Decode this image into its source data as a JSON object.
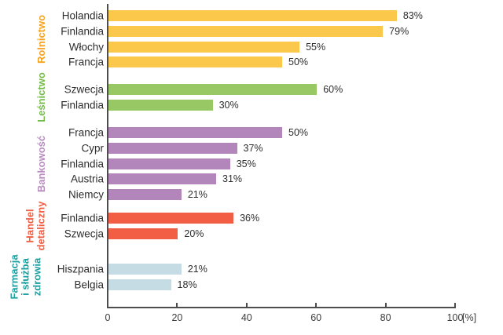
{
  "chart_data": {
    "type": "bar",
    "orientation": "horizontal",
    "title": "",
    "xlabel": "[%]",
    "ylabel": "",
    "xlim": [
      0,
      100
    ],
    "x_ticks": [
      0,
      20,
      40,
      60,
      80,
      100
    ],
    "grid": false,
    "legend": "none",
    "axis_color": "#4d4d4d",
    "groups": [
      {
        "sector": "Rolnictwo",
        "label_color": "#f6a21e",
        "bar_color": "#fbc84b",
        "rows": [
          {
            "country": "Holandia",
            "value": 83,
            "value_label": "83%"
          },
          {
            "country": "Finlandia",
            "value": 79,
            "value_label": "79%"
          },
          {
            "country": "Włochy",
            "value": 55,
            "value_label": "55%"
          },
          {
            "country": "Francja",
            "value": 50,
            "value_label": "50%"
          }
        ]
      },
      {
        "sector": "Leśnictwo",
        "label_color": "#74bb49",
        "bar_color": "#98c863",
        "rows": [
          {
            "country": "Szwecja",
            "value": 60,
            "value_label": "60%"
          },
          {
            "country": "Finlandia",
            "value": 30,
            "value_label": "30%"
          }
        ]
      },
      {
        "sector": "Bankowość",
        "label_color": "#b88cbf",
        "bar_color": "#b286bb",
        "rows": [
          {
            "country": "Francja",
            "value": 50,
            "value_label": "50%"
          },
          {
            "country": "Cypr",
            "value": 37,
            "value_label": "37%"
          },
          {
            "country": "Finlandia",
            "value": 35,
            "value_label": "35%"
          },
          {
            "country": "Austria",
            "value": 31,
            "value_label": "31%"
          },
          {
            "country": "Niemcy",
            "value": 21,
            "value_label": "21%"
          }
        ]
      },
      {
        "sector": "Handel\ndetaliczny",
        "label_color": "#f15e44",
        "bar_color": "#f15e44",
        "rows": [
          {
            "country": "Finlandia",
            "value": 36,
            "value_label": "36%"
          },
          {
            "country": "Szwecja",
            "value": 20,
            "value_label": "20%"
          }
        ]
      },
      {
        "sector": "Farmacja\ni służba\nzdrowia",
        "label_color": "#1ca0a2",
        "bar_color": "#c5dce5",
        "rows": [
          {
            "country": "Hiszpania",
            "value": 21,
            "value_label": "21%"
          },
          {
            "country": "Belgia",
            "value": 18,
            "value_label": "18%"
          }
        ]
      }
    ]
  },
  "axis": {
    "tick_labels": [
      "0",
      "20",
      "40",
      "60",
      "80",
      "100"
    ],
    "unit_label": "[%]"
  }
}
